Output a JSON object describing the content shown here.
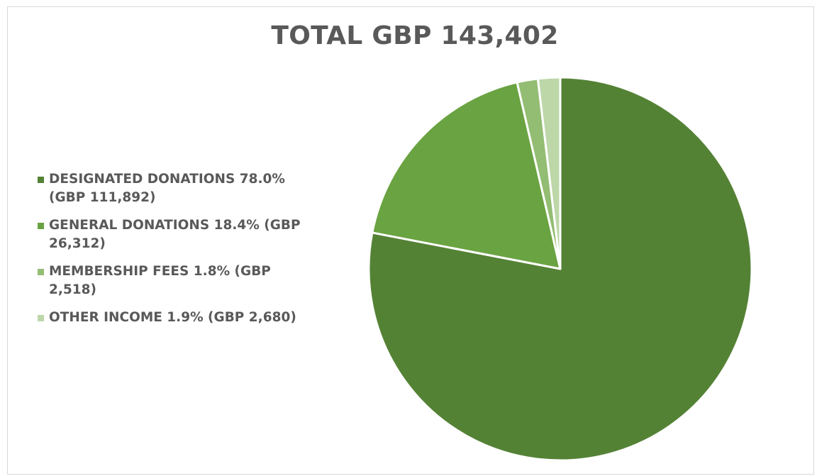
{
  "chart_data": {
    "type": "pie",
    "title": "TOTAL GBP 143,402",
    "legend_position": "left",
    "slices": [
      {
        "label": "DESIGNATED DONATIONS 78.0% (GBP 111,892)",
        "value": 111892,
        "percent": 78.0,
        "color": "#548235"
      },
      {
        "label": "GENERAL DONATIONS 18.4% (GBP 26,312)",
        "value": 26312,
        "percent": 18.4,
        "color": "#6aa341"
      },
      {
        "label": "MEMBERSHIP FEES 1.8% (GBP 2,518)",
        "value": 2518,
        "percent": 1.8,
        "color": "#93bd72"
      },
      {
        "label": "OTHER INCOME 1.9% (GBP 2,680)",
        "value": 2680,
        "percent": 1.9,
        "color": "#bdd7a9"
      }
    ]
  }
}
